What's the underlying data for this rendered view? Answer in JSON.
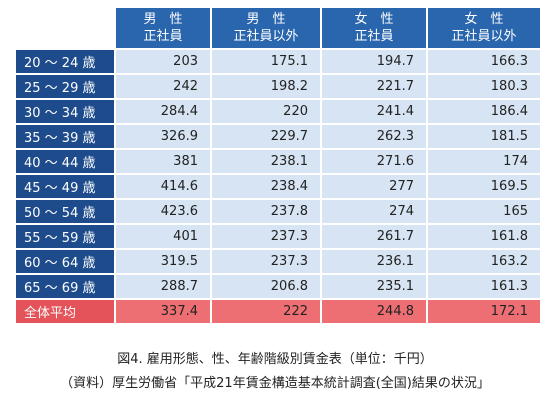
{
  "table": {
    "header": [
      [
        "男　性",
        "正社員"
      ],
      [
        "男　性",
        "正社員以外"
      ],
      [
        "女　性",
        "正社員"
      ],
      [
        "女　性",
        "正社員以外"
      ]
    ],
    "rows": [
      [
        "20 ～ 24 歳",
        "203",
        "175.1",
        "194.7",
        "166.3"
      ],
      [
        "25 ～ 29 歳",
        "242",
        "198.2",
        "221.7",
        "180.3"
      ],
      [
        "30 ～ 34 歳",
        "284.4",
        "220",
        "241.4",
        "186.4"
      ],
      [
        "35 ～ 39 歳",
        "326.9",
        "229.7",
        "262.3",
        "181.5"
      ],
      [
        "40 ～ 44 歳",
        "381",
        "238.1",
        "271.6",
        "174"
      ],
      [
        "45 ～ 49 歳",
        "414.6",
        "238.4",
        "277",
        "169.5"
      ],
      [
        "50 ～ 54 歳",
        "423.6",
        "237.8",
        "274",
        "165"
      ],
      [
        "55 ～ 59 歳",
        "401",
        "237.3",
        "261.7",
        "161.8"
      ],
      [
        "60 ～ 64 歳",
        "319.5",
        "237.3",
        "236.1",
        "163.2"
      ],
      [
        "65 ～ 69 歳",
        "288.7",
        "206.8",
        "235.1",
        "161.3"
      ],
      [
        "全体平均",
        "337.4",
        "222",
        "244.8",
        "172.1"
      ]
    ]
  },
  "caption": [
    "図4. 雇用形態、性、年齢階級別賃金表（単位：千円）",
    "（資料）厚生労働省「平成21年賃金構造基本統計調査(全国)結果の状況」"
  ]
}
